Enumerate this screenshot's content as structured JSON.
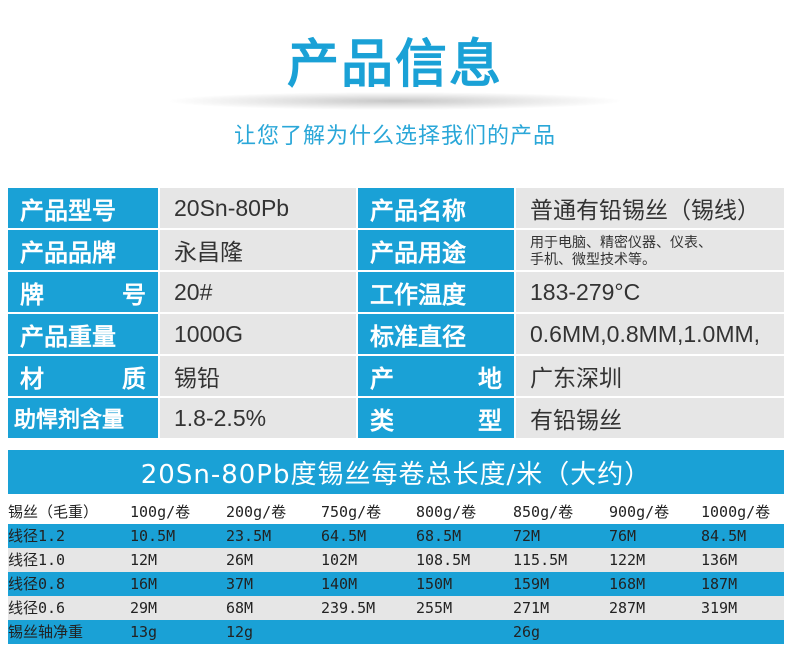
{
  "header": {
    "title": "产品信息",
    "subtitle": "让您了解为什么选择我们的产品"
  },
  "info": {
    "rows": [
      {
        "label1": "产品型号",
        "value1": "20Sn-80Pb",
        "label2": "产品名称",
        "value2": "普通有铅锡丝（锡线）"
      },
      {
        "label1": "产品品牌",
        "value1": "永昌隆",
        "label2": "产品用途",
        "value2_line1": "用于电脑、精密仪器、仪表、",
        "value2_line2": "手机、微型技术等。"
      },
      {
        "label1_a": "牌",
        "label1_b": "号",
        "value1": "20#",
        "label2": "工作温度",
        "value2": "183-279°C"
      },
      {
        "label1": "产品重量",
        "value1": "1000G",
        "label2": "标准直径",
        "value2": "0.6MM,0.8MM,1.0MM,"
      },
      {
        "label1_a": "材",
        "label1_b": "质",
        "value1": "锡铅",
        "label2_a": "产",
        "label2_b": "地",
        "value2": "广东深圳"
      },
      {
        "label1": "助悍剂含量",
        "value1": "1.8-2.5%",
        "label2_a": "类",
        "label2_b": "型",
        "value2": "有铅锡丝"
      }
    ]
  },
  "length_table": {
    "title": "20Sn-80Pb度锡丝每卷总长度/米（大约）",
    "header": [
      "锡丝（毛重）",
      "100g/卷",
      "200g/卷",
      "750g/卷",
      "800g/卷",
      "850g/卷",
      "900g/卷",
      "1000g/卷"
    ],
    "rows": [
      [
        "线径1.2",
        "10.5M",
        "23.5M",
        "64.5M",
        "68.5M",
        "72M",
        "76M",
        "84.5M"
      ],
      [
        "线径1.0",
        "12M",
        "26M",
        "102M",
        "108.5M",
        "115.5M",
        "122M",
        "136M"
      ],
      [
        "线径0.8",
        "16M",
        "37M",
        "140M",
        "150M",
        "159M",
        "168M",
        "187M"
      ],
      [
        "线径0.6",
        "29M",
        "68M",
        "239.5M",
        "255M",
        "271M",
        "287M",
        "319M"
      ],
      [
        "锡丝轴净重",
        "13g",
        "12g",
        "",
        "",
        "26g",
        "",
        ""
      ]
    ]
  },
  "colors": {
    "accent": "#1aa1d6",
    "cell_grey": "#e6e6e6"
  }
}
